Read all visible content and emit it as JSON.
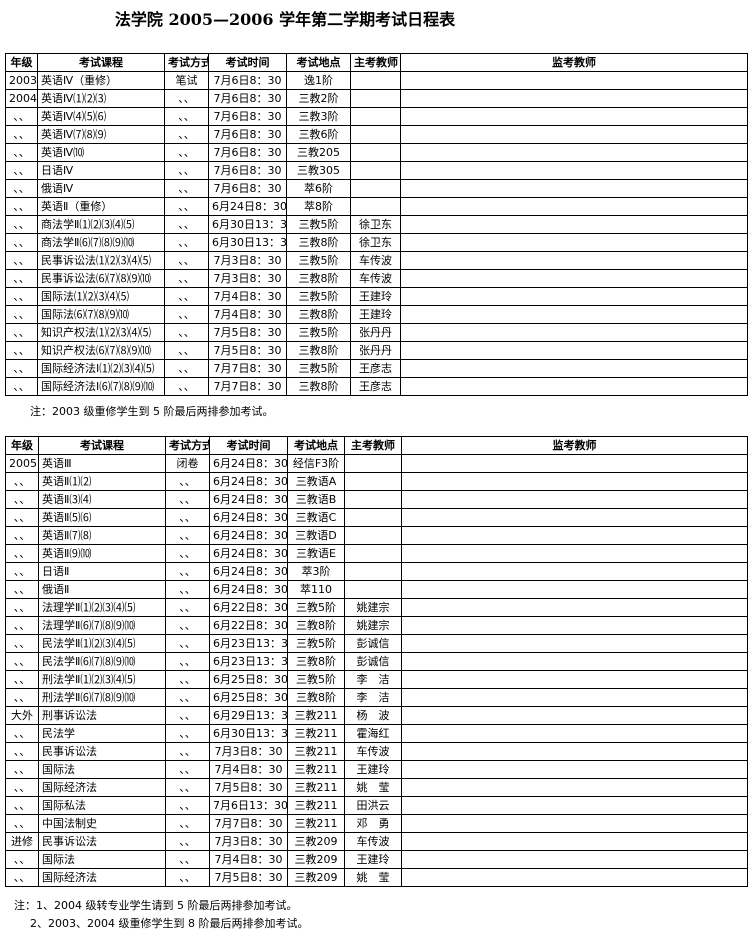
{
  "title": "法学院 2005—2006 学年第二学期考试日程表",
  "headers": [
    "年级",
    "考试课程",
    "考试方式",
    "考试时间",
    "考试地点",
    "主考教师",
    "监考教师"
  ],
  "table1": {
    "rows": [
      [
        "2003",
        "英语Ⅳ（重修）",
        "笔试",
        "7月6日8：30",
        "逸1阶",
        "",
        ""
      ],
      [
        "2004",
        "英语Ⅳ⑴⑵⑶",
        "、、",
        "7月6日8：30",
        "三教2阶",
        "",
        ""
      ],
      [
        "、、",
        "英语Ⅳ⑷⑸⑹",
        "、、",
        "7月6日8：30",
        "三教3阶",
        "",
        ""
      ],
      [
        "、、",
        "英语Ⅳ⑺⑻⑼",
        "、、",
        "7月6日8：30",
        "三教6阶",
        "",
        ""
      ],
      [
        "、、",
        "英语Ⅳ⑽",
        "、、",
        "7月6日8：30",
        "三教205",
        "",
        ""
      ],
      [
        "、、",
        "日语Ⅳ",
        "、、",
        "7月6日8：30",
        "三教305",
        "",
        ""
      ],
      [
        "、、",
        "俄语Ⅳ",
        "、、",
        "7月6日8：30",
        "萃6阶",
        "",
        ""
      ],
      [
        "、、",
        "英语Ⅱ（重修）",
        "、、",
        "6月24日8：30",
        "萃8阶",
        "",
        ""
      ],
      [
        "、、",
        "商法学Ⅱ⑴⑵⑶⑷⑸",
        "、、",
        "6月30日13：30",
        "三教5阶",
        "徐卫东",
        ""
      ],
      [
        "、、",
        "商法学Ⅱ⑹⑺⑻⑼⑽",
        "、、",
        "6月30日13：30",
        "三教8阶",
        "徐卫东",
        ""
      ],
      [
        "、、",
        "民事诉讼法⑴⑵⑶⑷⑸",
        "、、",
        "7月3日8：30",
        "三教5阶",
        "车传波",
        ""
      ],
      [
        "、、",
        "民事诉讼法⑹⑺⑻⑼⑽",
        "、、",
        "7月3日8：30",
        "三教8阶",
        "车传波",
        ""
      ],
      [
        "、、",
        "国际法⑴⑵⑶⑷⑸",
        "、、",
        "7月4日8：30",
        "三教5阶",
        "王建玲",
        ""
      ],
      [
        "、、",
        "国际法⑹⑺⑻⑼⑽",
        "、、",
        "7月4日8：30",
        "三教8阶",
        "王建玲",
        ""
      ],
      [
        "、、",
        "知识产权法⑴⑵⑶⑷⑸",
        "、、",
        "7月5日8：30",
        "三教5阶",
        "张丹丹",
        ""
      ],
      [
        "、、",
        "知识产权法⑹⑺⑻⑼⑽",
        "、、",
        "7月5日8：30",
        "三教8阶",
        "张丹丹",
        ""
      ],
      [
        "、、",
        "国际经济法Ⅰ⑴⑵⑶⑷⑸",
        "、、",
        "7月7日8：30",
        "三教5阶",
        "王彦志",
        ""
      ],
      [
        "、、",
        "国际经济法Ⅰ⑹⑺⑻⑼⑽",
        "、、",
        "7月7日8：30",
        "三教8阶",
        "王彦志",
        ""
      ]
    ],
    "note": "注：2003 级重修学生到 5 阶最后两排参加考试。"
  },
  "table2": {
    "rows": [
      [
        "2005",
        "英语Ⅲ",
        "闭卷",
        "6月24日8：30",
        "经信F3阶",
        "",
        ""
      ],
      [
        "、、",
        "英语Ⅱ⑴⑵",
        "、、",
        "6月24日8：30",
        "三教语A",
        "",
        ""
      ],
      [
        "、、",
        "英语Ⅱ⑶⑷",
        "、、",
        "6月24日8：30",
        "三教语B",
        "",
        ""
      ],
      [
        "、、",
        "英语Ⅱ⑸⑹",
        "、、",
        "6月24日8：30",
        "三教语C",
        "",
        ""
      ],
      [
        "、、",
        "英语Ⅱ⑺⑻",
        "、、",
        "6月24日8：30",
        "三教语D",
        "",
        ""
      ],
      [
        "、、",
        "英语Ⅱ⑼⑽",
        "、、",
        "6月24日8：30",
        "三教语E",
        "",
        ""
      ],
      [
        "、、",
        "日语Ⅱ",
        "、、",
        "6月24日8：30",
        "萃3阶",
        "",
        ""
      ],
      [
        "、、",
        "俄语Ⅱ",
        "、、",
        "6月24日8：30",
        "萃110",
        "",
        ""
      ],
      [
        "、、",
        "法理学Ⅱ⑴⑵⑶⑷⑸",
        "、、",
        "6月22日8：30",
        "三教5阶",
        "姚建宗",
        ""
      ],
      [
        "、、",
        "法理学Ⅱ⑹⑺⑻⑼⑽",
        "、、",
        "6月22日8：30",
        "三教8阶",
        "姚建宗",
        ""
      ],
      [
        "、、",
        "民法学Ⅱ⑴⑵⑶⑷⑸",
        "、、",
        "6月23日13：30",
        "三教5阶",
        "彭诚信",
        ""
      ],
      [
        "、、",
        "民法学Ⅱ⑹⑺⑻⑼⑽",
        "、、",
        "6月23日13：30",
        "三教8阶",
        "彭诚信",
        ""
      ],
      [
        "、、",
        "刑法学Ⅱ⑴⑵⑶⑷⑸",
        "、、",
        "6月25日8：30",
        "三教5阶",
        "李　洁",
        ""
      ],
      [
        "、、",
        "刑法学Ⅱ⑹⑺⑻⑼⑽",
        "、、",
        "6月25日8：30",
        "三教8阶",
        "李　洁",
        ""
      ],
      [
        "大外",
        "刑事诉讼法",
        "、、",
        "6月29日13：30",
        "三教211",
        "杨　波",
        ""
      ],
      [
        "、、",
        "民法学",
        "、、",
        "6月30日13：30",
        "三教211",
        "霍海红",
        ""
      ],
      [
        "、、",
        "民事诉讼法",
        "、、",
        "7月3日8：30",
        "三教211",
        "车传波",
        ""
      ],
      [
        "、、",
        "国际法",
        "、、",
        "7月4日8：30",
        "三教211",
        "王建玲",
        ""
      ],
      [
        "、、",
        "国际经济法",
        "、、",
        "7月5日8：30",
        "三教211",
        "姚　莹",
        ""
      ],
      [
        "、、",
        "国际私法",
        "、、",
        "7月6日13：30",
        "三教211",
        "田洪云",
        ""
      ],
      [
        "、、",
        "中国法制史",
        "、、",
        "7月7日8：30",
        "三教211",
        "邓　勇",
        ""
      ],
      [
        "进修",
        "民事诉讼法",
        "、、",
        "7月3日8：30",
        "三教209",
        "车传波",
        ""
      ],
      [
        "、、",
        "国际法",
        "、、",
        "7月4日8：30",
        "三教209",
        "王建玲",
        ""
      ],
      [
        "、、",
        "国际经济法",
        "、、",
        "7月5日8：30",
        "三教209",
        "姚　莹",
        ""
      ]
    ],
    "notes": [
      "注：1、2004 级转专业学生请到 5 阶最后两排参加考试。",
      "2、2003、2004 级重修学生到 8 阶最后两排参加考试。"
    ]
  }
}
